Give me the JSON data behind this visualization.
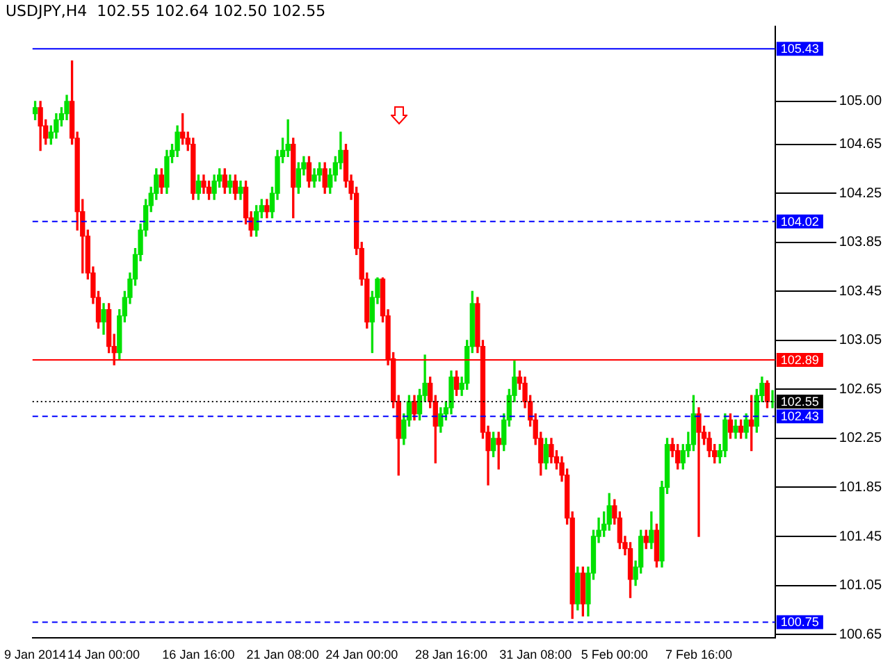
{
  "chart_data": {
    "type": "candlestick",
    "title": "USDJPY,H4  102.55 102.64 102.50 102.55",
    "categories": [
      "9 Jan 2014",
      null,
      null,
      null,
      null,
      null,
      null,
      null,
      null,
      null,
      null,
      null,
      null,
      "14 Jan 00:00",
      null,
      null,
      null,
      null,
      null,
      null,
      null,
      null,
      null,
      null,
      null,
      null,
      null,
      null,
      null,
      null,
      null,
      "16 Jan 16:00",
      null,
      null,
      null,
      null,
      null,
      null,
      null,
      null,
      null,
      null,
      null,
      null,
      null,
      null,
      null,
      "21 Jan 08:00",
      null,
      null,
      null,
      null,
      null,
      null,
      null,
      null,
      null,
      null,
      null,
      null,
      null,
      null,
      "24 Jan 00:00",
      null,
      null,
      null,
      null,
      null,
      null,
      null,
      null,
      null,
      null,
      null,
      null,
      null,
      null,
      null,
      null,
      "28 Jan 16:00",
      null,
      null,
      null,
      null,
      null,
      null,
      null,
      null,
      null,
      null,
      null,
      null,
      null,
      null,
      null,
      "31 Jan 08:00",
      null,
      null,
      null,
      null,
      null,
      null,
      null,
      null,
      null,
      null,
      null,
      null,
      null,
      null,
      "5 Feb 00:00",
      null,
      null,
      null,
      null,
      null,
      null,
      null,
      null,
      null,
      null,
      null,
      null,
      null,
      null,
      null,
      "7 Feb 16:00",
      null,
      null,
      null,
      null,
      null,
      null,
      null,
      null,
      null,
      null,
      null,
      null,
      null,
      null
    ],
    "ohlc": [
      [
        104.9,
        105.0,
        104.85,
        104.95
      ],
      [
        104.95,
        105.0,
        104.6,
        104.8
      ],
      [
        104.8,
        104.85,
        104.65,
        104.7
      ],
      [
        104.7,
        104.8,
        104.65,
        104.75
      ],
      [
        104.75,
        104.9,
        104.7,
        104.85
      ],
      [
        104.85,
        104.95,
        104.8,
        104.9
      ],
      [
        104.9,
        105.05,
        104.85,
        105.0
      ],
      [
        105.0,
        105.33,
        104.65,
        104.7
      ],
      [
        104.7,
        104.75,
        103.95,
        104.1
      ],
      [
        104.1,
        104.2,
        103.6,
        103.9
      ],
      [
        103.9,
        103.95,
        103.55,
        103.6
      ],
      [
        103.6,
        103.65,
        103.35,
        103.4
      ],
      [
        103.4,
        103.45,
        103.15,
        103.2
      ],
      [
        103.2,
        103.35,
        103.1,
        103.3
      ],
      [
        103.3,
        103.35,
        102.95,
        103.0
      ],
      [
        103.0,
        103.1,
        102.85,
        102.95
      ],
      [
        102.95,
        103.3,
        102.9,
        103.25
      ],
      [
        103.25,
        103.45,
        103.2,
        103.4
      ],
      [
        103.4,
        103.6,
        103.35,
        103.55
      ],
      [
        103.55,
        103.8,
        103.5,
        103.75
      ],
      [
        103.75,
        104.0,
        103.7,
        103.95
      ],
      [
        103.95,
        104.2,
        103.9,
        104.15
      ],
      [
        104.15,
        104.3,
        104.1,
        104.25
      ],
      [
        104.25,
        104.45,
        104.2,
        104.4
      ],
      [
        104.4,
        104.45,
        104.25,
        104.3
      ],
      [
        104.3,
        104.6,
        104.25,
        104.55
      ],
      [
        104.55,
        104.65,
        104.5,
        104.6
      ],
      [
        104.6,
        104.8,
        104.55,
        104.75
      ],
      [
        104.75,
        104.9,
        104.65,
        104.7
      ],
      [
        104.7,
        104.75,
        104.6,
        104.65
      ],
      [
        104.65,
        104.7,
        104.2,
        104.25
      ],
      [
        104.25,
        104.4,
        104.2,
        104.35
      ],
      [
        104.35,
        104.4,
        104.25,
        104.3
      ],
      [
        104.3,
        104.35,
        104.2,
        104.25
      ],
      [
        104.25,
        104.4,
        104.2,
        104.35
      ],
      [
        104.35,
        104.45,
        104.3,
        104.4
      ],
      [
        104.4,
        104.45,
        104.25,
        104.3
      ],
      [
        104.3,
        104.4,
        104.25,
        104.35
      ],
      [
        104.35,
        104.4,
        104.2,
        104.25
      ],
      [
        104.25,
        104.35,
        104.2,
        104.3
      ],
      [
        104.3,
        104.35,
        104.0,
        104.05
      ],
      [
        104.05,
        104.1,
        103.9,
        103.95
      ],
      [
        103.95,
        104.15,
        103.9,
        104.1
      ],
      [
        104.1,
        104.2,
        104.05,
        104.15
      ],
      [
        104.15,
        104.2,
        104.05,
        104.1
      ],
      [
        104.1,
        104.3,
        104.05,
        104.25
      ],
      [
        104.25,
        104.6,
        104.2,
        104.55
      ],
      [
        104.55,
        104.7,
        104.5,
        104.6
      ],
      [
        104.6,
        104.85,
        104.55,
        104.65
      ],
      [
        104.65,
        104.7,
        104.05,
        104.3
      ],
      [
        104.3,
        104.5,
        104.25,
        104.45
      ],
      [
        104.45,
        104.55,
        104.4,
        104.5
      ],
      [
        104.5,
        104.55,
        104.3,
        104.35
      ],
      [
        104.35,
        104.45,
        104.3,
        104.4
      ],
      [
        104.4,
        104.5,
        104.35,
        104.45
      ],
      [
        104.45,
        104.5,
        104.25,
        104.3
      ],
      [
        104.3,
        104.45,
        104.25,
        104.4
      ],
      [
        104.4,
        104.55,
        104.35,
        104.5
      ],
      [
        104.5,
        104.75,
        104.45,
        104.6
      ],
      [
        104.6,
        104.65,
        104.3,
        104.35
      ],
      [
        104.35,
        104.4,
        104.2,
        104.25
      ],
      [
        104.25,
        104.3,
        103.75,
        103.8
      ],
      [
        103.8,
        103.85,
        103.5,
        103.55
      ],
      [
        103.55,
        103.6,
        103.15,
        103.2
      ],
      [
        103.2,
        103.45,
        102.95,
        103.4
      ],
      [
        103.4,
        103.56,
        103.35,
        103.55
      ],
      [
        103.55,
        103.56,
        103.2,
        103.25
      ],
      [
        103.25,
        103.3,
        102.85,
        102.9
      ],
      [
        102.9,
        102.95,
        102.5,
        102.55
      ],
      [
        102.55,
        102.6,
        101.95,
        102.25
      ],
      [
        102.25,
        102.45,
        102.2,
        102.4
      ],
      [
        102.4,
        102.6,
        102.35,
        102.55
      ],
      [
        102.55,
        102.6,
        102.4,
        102.45
      ],
      [
        102.45,
        102.65,
        102.4,
        102.6
      ],
      [
        102.6,
        102.93,
        102.55,
        102.7
      ],
      [
        102.7,
        102.75,
        102.5,
        102.55
      ],
      [
        102.55,
        102.6,
        102.05,
        102.35
      ],
      [
        102.35,
        102.5,
        102.3,
        102.45
      ],
      [
        102.45,
        102.55,
        102.4,
        102.5
      ],
      [
        102.5,
        102.8,
        102.45,
        102.75
      ],
      [
        102.75,
        102.8,
        102.6,
        102.65
      ],
      [
        102.65,
        102.75,
        102.6,
        102.7
      ],
      [
        102.7,
        103.05,
        102.65,
        103.0
      ],
      [
        103.0,
        103.45,
        102.95,
        103.35
      ],
      [
        103.35,
        103.4,
        102.95,
        103.0
      ],
      [
        103.0,
        103.05,
        102.25,
        102.3
      ],
      [
        102.3,
        102.35,
        101.87,
        102.15
      ],
      [
        102.15,
        102.3,
        102.1,
        102.25
      ],
      [
        102.25,
        102.3,
        102.0,
        102.2
      ],
      [
        102.2,
        102.45,
        102.15,
        102.4
      ],
      [
        102.4,
        102.65,
        102.35,
        102.6
      ],
      [
        102.6,
        102.88,
        102.55,
        102.75
      ],
      [
        102.75,
        102.8,
        102.65,
        102.7
      ],
      [
        102.7,
        102.75,
        102.5,
        102.55
      ],
      [
        102.55,
        102.6,
        102.35,
        102.4
      ],
      [
        102.4,
        102.45,
        102.2,
        102.25
      ],
      [
        102.25,
        102.3,
        101.95,
        102.05
      ],
      [
        102.05,
        102.25,
        102.0,
        102.2
      ],
      [
        102.2,
        102.25,
        102.05,
        102.1
      ],
      [
        102.1,
        102.15,
        102.0,
        102.05
      ],
      [
        102.05,
        102.1,
        101.9,
        101.95
      ],
      [
        101.95,
        102.0,
        101.55,
        101.6
      ],
      [
        101.6,
        101.65,
        100.78,
        100.9
      ],
      [
        100.9,
        101.2,
        100.85,
        101.15
      ],
      [
        101.15,
        101.2,
        100.8,
        100.9
      ],
      [
        100.9,
        101.2,
        100.8,
        101.15
      ],
      [
        101.15,
        101.5,
        101.1,
        101.45
      ],
      [
        101.45,
        101.6,
        101.4,
        101.5
      ],
      [
        101.5,
        101.65,
        101.45,
        101.55
      ],
      [
        101.55,
        101.8,
        101.5,
        101.7
      ],
      [
        101.7,
        101.75,
        101.55,
        101.6
      ],
      [
        101.6,
        101.65,
        101.35,
        101.4
      ],
      [
        101.4,
        101.45,
        101.3,
        101.35
      ],
      [
        101.35,
        101.4,
        100.95,
        101.1
      ],
      [
        101.1,
        101.25,
        101.05,
        101.2
      ],
      [
        101.2,
        101.5,
        101.15,
        101.45
      ],
      [
        101.45,
        101.5,
        101.35,
        101.4
      ],
      [
        101.4,
        101.65,
        101.35,
        101.5
      ],
      [
        101.5,
        101.55,
        101.2,
        101.25
      ],
      [
        101.25,
        101.9,
        101.2,
        101.85
      ],
      [
        101.85,
        102.25,
        101.8,
        102.2
      ],
      [
        102.2,
        102.25,
        102.1,
        102.15
      ],
      [
        102.15,
        102.2,
        102.0,
        102.05
      ],
      [
        102.05,
        102.2,
        102.0,
        102.15
      ],
      [
        102.15,
        102.3,
        102.1,
        102.2
      ],
      [
        102.2,
        102.6,
        102.15,
        102.45
      ],
      [
        102.45,
        102.5,
        101.45,
        102.3
      ],
      [
        102.3,
        102.35,
        102.2,
        102.25
      ],
      [
        102.25,
        102.3,
        102.1,
        102.15
      ],
      [
        102.15,
        102.2,
        102.05,
        102.1
      ],
      [
        102.1,
        102.2,
        102.05,
        102.15
      ],
      [
        102.15,
        102.45,
        102.1,
        102.4
      ],
      [
        102.4,
        102.45,
        102.25,
        102.3
      ],
      [
        102.3,
        102.4,
        102.25,
        102.35
      ],
      [
        102.35,
        102.4,
        102.25,
        102.3
      ],
      [
        102.3,
        102.45,
        102.25,
        102.4
      ],
      [
        102.4,
        102.6,
        102.15,
        102.35
      ],
      [
        102.35,
        102.65,
        102.3,
        102.6
      ],
      [
        102.6,
        102.75,
        102.55,
        102.7
      ],
      [
        102.7,
        102.72,
        102.5,
        102.55
      ],
      [
        102.55,
        102.64,
        102.5,
        102.55
      ]
    ],
    "ylim": [
      100.62,
      105.61
    ],
    "yticks": [
      100.65,
      101.05,
      101.45,
      101.85,
      102.25,
      102.65,
      103.05,
      103.45,
      103.85,
      104.25,
      104.65,
      {
        "value": 105,
        "label": "105.00"
      }
    ],
    "ref_lines": [
      {
        "axis": "y",
        "value": 105.43,
        "label": "105.43",
        "color": "#0000ff",
        "line_style": "solid"
      },
      {
        "axis": "y",
        "value": 104.02,
        "label": "104.02",
        "color": "#0000ff",
        "line_style": "dashed"
      },
      {
        "axis": "y",
        "value": 102.89,
        "label": "102.89",
        "color": "#ff0000",
        "line_style": "solid"
      },
      {
        "axis": "y",
        "value": 102.43,
        "label": "102.43",
        "color": "#0000ff",
        "line_style": "dashed"
      },
      {
        "axis": "y",
        "value": 100.75,
        "label": "100.75",
        "color": "#0000ff",
        "line_style": "dashed"
      },
      {
        "axis": "y",
        "value": 102.55,
        "label": "102.55",
        "color": "#000000",
        "line_style": "dotted"
      }
    ],
    "grid": false,
    "legend": false
  }
}
